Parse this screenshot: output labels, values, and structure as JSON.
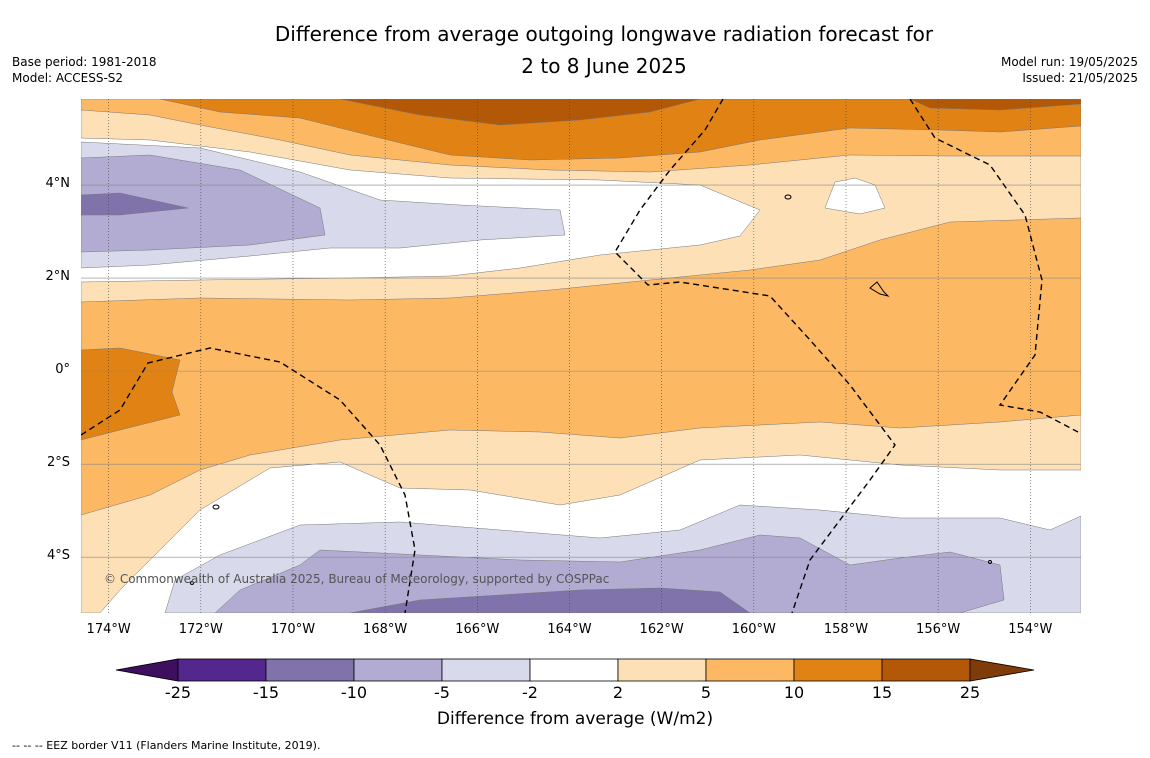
{
  "title": {
    "line1": "Difference from average outgoing longwave radiation forecast for",
    "line2": "2 to 8 June 2025"
  },
  "meta_left": {
    "base_period": "Base period: 1981-2018",
    "model": "Model: ACCESS-S2"
  },
  "meta_right": {
    "model_run": "Model run: 19/05/2025",
    "issued": "Issued: 21/05/2025"
  },
  "map": {
    "extent": {
      "lon_min": -174.6,
      "lon_max": -152.9,
      "lat_min": -5.2,
      "lat_max": 5.85
    },
    "lat_ticks": [
      {
        "value": 4,
        "label": "4°N"
      },
      {
        "value": 2,
        "label": "2°N"
      },
      {
        "value": 0,
        "label": "0°"
      },
      {
        "value": -2,
        "label": "2°S"
      },
      {
        "value": -4,
        "label": "4°S"
      }
    ],
    "lon_ticks": [
      {
        "value": -174,
        "label": "174°W"
      },
      {
        "value": -172,
        "label": "172°W"
      },
      {
        "value": -170,
        "label": "170°W"
      },
      {
        "value": -168,
        "label": "168°W"
      },
      {
        "value": -166,
        "label": "166°W"
      },
      {
        "value": -164,
        "label": "164°W"
      },
      {
        "value": -162,
        "label": "162°W"
      },
      {
        "value": -160,
        "label": "160°W"
      },
      {
        "value": -158,
        "label": "158°W"
      },
      {
        "value": -156,
        "label": "156°W"
      },
      {
        "value": -154,
        "label": "154°W"
      }
    ],
    "credit": "© Commonwealth of Australia 2025, Bureau of Meteorology, supported by COSPPac"
  },
  "colorbar": {
    "ticks": [
      "-25",
      "-15",
      "-10",
      "-5",
      "-2",
      "2",
      "5",
      "10",
      "15",
      "25"
    ],
    "colors": [
      "#3d0f5e",
      "#54278f",
      "#8073ac",
      "#b2abd2",
      "#d8daeb",
      "#ffffff",
      "#fee0b6",
      "#fdb863",
      "#e08214",
      "#b35806",
      "#7f3b08"
    ],
    "label": "Difference from average (W/m2)"
  },
  "footnote": "--  --  -- EEZ border V11 (Flanders Marine Institute, 2019)."
}
